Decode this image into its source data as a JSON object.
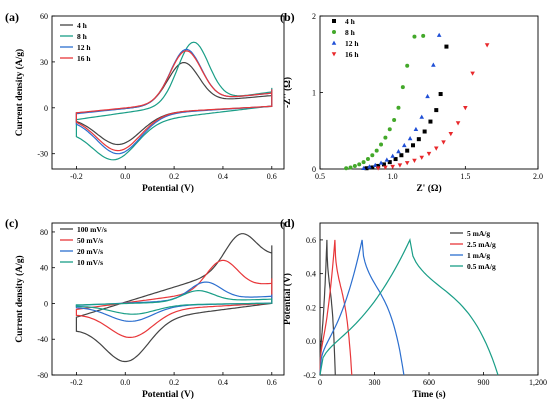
{
  "chart_data": [
    {
      "panel": "(a)",
      "type": "line",
      "xlabel": "Potential (V)",
      "ylabel": "Current density (A/g)",
      "xlim": [
        -0.3,
        0.65
      ],
      "ylim": [
        -40,
        60
      ],
      "x_ticks": [
        -0.2,
        0.0,
        0.2,
        0.4,
        0.6
      ],
      "x_tick_labels": [
        "-0.2",
        "0.0",
        "0.2",
        "0.4",
        "0.6"
      ],
      "y_ticks": [
        -30,
        0,
        30,
        60
      ],
      "y_tick_labels": [
        "-30",
        "0",
        "30",
        "60"
      ],
      "legend_position": "top-left",
      "series": [
        {
          "name": "4 h",
          "color": "#444444",
          "peak_potential": 0.24,
          "peak_value": 31,
          "end_value": 10,
          "min_potential": -0.03,
          "min_value": -24,
          "start_value": -6,
          "return_value": 9
        },
        {
          "name": "8 h",
          "color": "#1a9e87",
          "peak_potential": 0.28,
          "peak_value": 45,
          "end_value": 13,
          "min_potential": -0.05,
          "min_value": -34,
          "start_value": -14,
          "return_value": 12
        },
        {
          "name": "12 h",
          "color": "#2c6fcf",
          "peak_potential": 0.25,
          "peak_value": 40,
          "end_value": 12,
          "min_potential": -0.03,
          "min_value": -30,
          "start_value": -7,
          "return_value": 10
        },
        {
          "name": "16 h",
          "color": "#e8373a",
          "peak_potential": 0.25,
          "peak_value": 39,
          "end_value": 12,
          "min_potential": -0.03,
          "min_value": -28,
          "start_value": -6,
          "return_value": 10
        }
      ]
    },
    {
      "panel": "(b)",
      "type": "scatter",
      "xlabel": "Z' (Ω)",
      "ylabel": "-Z'' (Ω)",
      "xlim": [
        0.5,
        2.0
      ],
      "ylim": [
        0,
        2
      ],
      "x_ticks": [
        0.5,
        1.0,
        1.5,
        2.0
      ],
      "x_tick_labels": [
        "0.5",
        "1.0",
        "1.5",
        "2.0"
      ],
      "y_ticks": [
        0,
        1,
        2
      ],
      "y_tick_labels": [
        "0",
        "1",
        "2"
      ],
      "legend_position": "top-left",
      "series": [
        {
          "name": "4 h",
          "color": "#000000",
          "marker": "square",
          "x": [
            0.82,
            0.86,
            0.9,
            0.94,
            0.98,
            1.02,
            1.06,
            1.1,
            1.14,
            1.18,
            1.22,
            1.26,
            1.3,
            1.33,
            1.37
          ],
          "y": [
            0.01,
            0.02,
            0.04,
            0.06,
            0.09,
            0.13,
            0.18,
            0.24,
            0.31,
            0.39,
            0.49,
            0.62,
            0.77,
            0.98,
            1.6
          ]
        },
        {
          "name": "8 h",
          "color": "#43a82a",
          "marker": "circle",
          "x": [
            0.68,
            0.71,
            0.74,
            0.77,
            0.8,
            0.83,
            0.86,
            0.89,
            0.92,
            0.95,
            0.98,
            1.01,
            1.04,
            1.07,
            1.1,
            1.15,
            1.21
          ],
          "y": [
            0.01,
            0.02,
            0.04,
            0.06,
            0.09,
            0.13,
            0.18,
            0.24,
            0.32,
            0.41,
            0.52,
            0.64,
            0.8,
            1.07,
            1.35,
            1.73,
            1.74
          ]
        },
        {
          "name": "12 h",
          "color": "#1f4fd6",
          "marker": "triangle-up",
          "x": [
            0.8,
            0.84,
            0.88,
            0.92,
            0.96,
            1.0,
            1.04,
            1.08,
            1.12,
            1.16,
            1.2,
            1.24,
            1.28,
            1.32
          ],
          "y": [
            0.01,
            0.03,
            0.05,
            0.08,
            0.12,
            0.17,
            0.23,
            0.31,
            0.4,
            0.52,
            0.68,
            0.95,
            1.36,
            1.75
          ]
        },
        {
          "name": "16 h",
          "color": "#e8282b",
          "marker": "triangle-down",
          "x": [
            0.9,
            0.95,
            1.0,
            1.05,
            1.1,
            1.15,
            1.2,
            1.25,
            1.3,
            1.35,
            1.4,
            1.45,
            1.5,
            1.55,
            1.65
          ],
          "y": [
            0.01,
            0.02,
            0.03,
            0.05,
            0.08,
            0.11,
            0.15,
            0.2,
            0.27,
            0.35,
            0.46,
            0.6,
            0.8,
            1.25,
            1.62
          ]
        }
      ]
    },
    {
      "panel": "(c)",
      "type": "line",
      "xlabel": "Potential (V)",
      "ylabel": "Current density (A/g)",
      "xlim": [
        -0.3,
        0.65
      ],
      "ylim": [
        -80,
        90
      ],
      "x_ticks": [
        -0.2,
        0.0,
        0.2,
        0.4,
        0.6
      ],
      "x_tick_labels": [
        "-0.2",
        "0.0",
        "0.2",
        "0.4",
        "0.6"
      ],
      "y_ticks": [
        -80,
        -40,
        0,
        40,
        80
      ],
      "y_tick_labels": [
        "-80",
        "-40",
        "0",
        "40",
        "80"
      ],
      "legend_position": "top-left",
      "series": [
        {
          "name": "100 mV/s",
          "color": "#444444",
          "peak_potential": 0.48,
          "peak_value": 80,
          "end_value": 65,
          "min_potential": 0.0,
          "min_value": -65,
          "start_value": -28,
          "return_value": 2
        },
        {
          "name": "50 mV/s",
          "color": "#e8373a",
          "peak_potential": 0.4,
          "peak_value": 50,
          "end_value": 28,
          "min_potential": 0.02,
          "min_value": -38,
          "start_value": -12,
          "return_value": 4
        },
        {
          "name": "20 mV/s",
          "color": "#2c6fcf",
          "peak_potential": 0.33,
          "peak_value": 25,
          "end_value": 10,
          "min_potential": 0.02,
          "min_value": -20,
          "start_value": -4,
          "return_value": 4
        },
        {
          "name": "10 mV/s",
          "color": "#1a9e87",
          "peak_potential": 0.3,
          "peak_value": 15,
          "end_value": 6,
          "min_potential": 0.03,
          "min_value": -12,
          "start_value": -3,
          "return_value": 3
        }
      ]
    },
    {
      "panel": "(d)",
      "type": "line",
      "xlabel": "Time (s)",
      "ylabel": "Potential (V)",
      "xlim": [
        0,
        1200
      ],
      "ylim": [
        -0.2,
        0.7
      ],
      "x_ticks": [
        0,
        300,
        600,
        900,
        1200
      ],
      "x_tick_labels": [
        "0",
        "300",
        "600",
        "900",
        "1,200"
      ],
      "y_ticks": [
        -0.2,
        0.0,
        0.2,
        0.4,
        0.6
      ],
      "y_tick_labels": [
        "-0.2",
        "0.0",
        "0.2",
        "0.4",
        "0.6"
      ],
      "legend_position": "top-right",
      "series": [
        {
          "name": "5 mA/g",
          "color": "#444444",
          "t_peak": 38,
          "t_end": 84
        },
        {
          "name": "2.5 mA/g",
          "color": "#e8373a",
          "t_peak": 82,
          "t_end": 175
        },
        {
          "name": "1 mA/g",
          "color": "#2c6fcf",
          "t_peak": 232,
          "t_end": 462
        },
        {
          "name": "0.5 mA/g",
          "color": "#1a9e87",
          "t_peak": 495,
          "t_end": 980
        }
      ]
    }
  ]
}
